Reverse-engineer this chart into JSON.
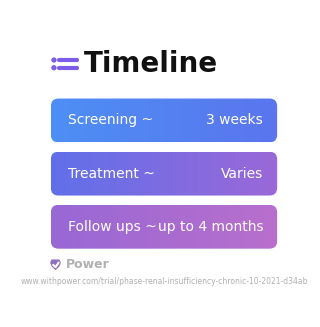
{
  "title": "Timeline",
  "title_fontsize": 20,
  "title_color": "#111111",
  "title_bold": true,
  "icon_color": "#7C5CE8",
  "background_color": "#ffffff",
  "rows": [
    {
      "left_label": "Screening ~",
      "right_label": "3 weeks",
      "color_left": "#4D8FF5",
      "color_right": "#5B75EE"
    },
    {
      "left_label": "Treatment ~",
      "right_label": "Varies",
      "color_left": "#6070EA",
      "color_right": "#9B68D8"
    },
    {
      "left_label": "Follow ups ~",
      "right_label": "up to 4 months",
      "color_left": "#9868D5",
      "color_right": "#B96FCC"
    }
  ],
  "footer_text": "Power",
  "footer_url": "www.withpower.com/trial/phase-renal-insufficiency-chronic-10-2021-d34ab",
  "footer_color": "#b0b0b0",
  "footer_fontsize": 5.5,
  "footer_icon_color": "#9070C0"
}
